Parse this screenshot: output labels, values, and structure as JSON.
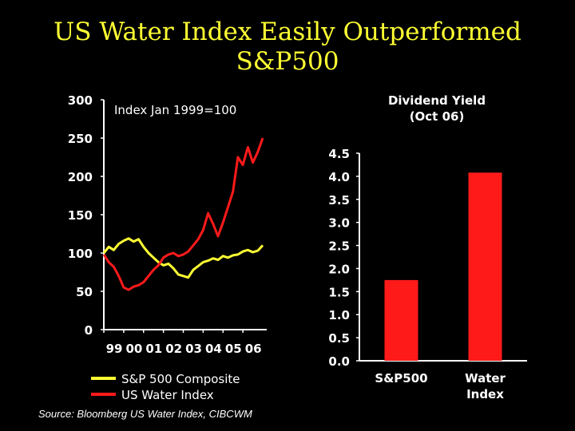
{
  "slide": {
    "title_line1": "US Water Index Easily Outperformed",
    "title_line2": "S&P500",
    "source": "Source: Bloomberg US Water Index, CIBCWM"
  },
  "colors": {
    "background": "#000000",
    "title": "#ffff33",
    "sp500": "#ffff33",
    "water": "#ff1a1a",
    "text": "#ffffff"
  },
  "chart_data": [
    {
      "type": "line",
      "title": "Index Jan 1999=100",
      "xlabel": "",
      "ylabel": "",
      "x_ticks": [
        "99",
        "00",
        "01",
        "02",
        "03",
        "04",
        "05",
        "06"
      ],
      "x_range": [
        1999,
        2007.2
      ],
      "ylim": [
        0,
        300
      ],
      "y_ticks": [
        0,
        50,
        100,
        150,
        200,
        250,
        300
      ],
      "legend": "bottom",
      "series": [
        {
          "name": "S&P 500 Composite",
          "color": "#ffff33",
          "x": [
            1999.0,
            1999.25,
            1999.5,
            1999.75,
            2000.0,
            2000.25,
            2000.5,
            2000.75,
            2001.0,
            2001.25,
            2001.5,
            2001.75,
            2002.0,
            2002.25,
            2002.5,
            2002.75,
            2003.0,
            2003.25,
            2003.5,
            2003.75,
            2004.0,
            2004.25,
            2004.5,
            2004.75,
            2005.0,
            2005.25,
            2005.5,
            2005.75,
            2006.0,
            2006.25,
            2006.5,
            2006.75,
            2007.0
          ],
          "y": [
            100,
            108,
            104,
            112,
            116,
            119,
            115,
            118,
            108,
            100,
            94,
            88,
            84,
            86,
            80,
            72,
            70,
            68,
            78,
            83,
            88,
            90,
            93,
            91,
            96,
            94,
            97,
            98,
            102,
            104,
            101,
            103,
            110
          ]
        },
        {
          "name": "US Water Index",
          "color": "#ff1a1a",
          "x": [
            1999.0,
            1999.25,
            1999.5,
            1999.75,
            2000.0,
            2000.25,
            2000.5,
            2000.75,
            2001.0,
            2001.25,
            2001.5,
            2001.75,
            2002.0,
            2002.25,
            2002.5,
            2002.75,
            2003.0,
            2003.25,
            2003.5,
            2003.75,
            2004.0,
            2004.25,
            2004.5,
            2004.75,
            2005.0,
            2005.25,
            2005.5,
            2005.75,
            2006.0,
            2006.25,
            2006.5,
            2006.75,
            2007.0
          ],
          "y": [
            98,
            88,
            82,
            70,
            55,
            52,
            56,
            58,
            62,
            70,
            78,
            84,
            94,
            98,
            100,
            96,
            98,
            102,
            110,
            118,
            130,
            152,
            138,
            122,
            140,
            160,
            180,
            225,
            215,
            238,
            218,
            232,
            250
          ]
        }
      ]
    },
    {
      "type": "bar",
      "title": "Dividend Yield\n(Oct 06)",
      "title_lines": [
        "Dividend Yield",
        "(Oct 06)"
      ],
      "categories": [
        "S&P500",
        "Water\nIndex"
      ],
      "category_lines": [
        [
          "S&P500"
        ],
        [
          "Water",
          "Index"
        ]
      ],
      "values": [
        1.75,
        4.08
      ],
      "ylim": [
        0,
        4.5
      ],
      "y_ticks": [
        "0.0",
        "0.5",
        "1.0",
        "1.5",
        "2.0",
        "2.5",
        "3.0",
        "3.5",
        "4.0",
        "4.5"
      ],
      "bar_color": "#ff1a1a"
    }
  ]
}
